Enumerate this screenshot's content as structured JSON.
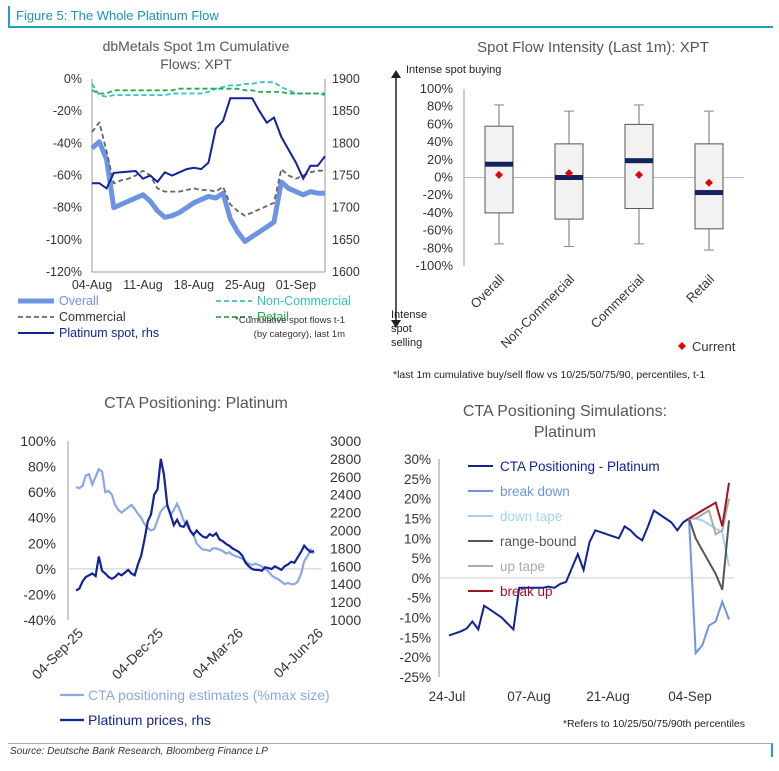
{
  "figure_title": "Figure 5: The Whole Platinum Flow",
  "source": "Source: Deutsche Bank Research, Bloomberg Finance LP",
  "colors": {
    "overall": "#6d94e0",
    "non_commercial": "#33c0c8",
    "commercial": "#666666",
    "retail": "#2aa84a",
    "spot": "#12239a",
    "cta_est": "#8aa8e6",
    "cta_price": "#12239a",
    "current": "#e00000",
    "median": "#12235e",
    "accent": "#1fa1c4"
  },
  "chart_data": [
    {
      "id": "flows",
      "type": "line",
      "title": "dbMetals Spot 1m Cumulative Flows: XPT",
      "ylim": [
        -120,
        0
      ],
      "y2lim": [
        1600,
        1900
      ],
      "x_ticks": [
        "04-Aug",
        "11-Aug",
        "18-Aug",
        "25-Aug",
        "01-Sep"
      ],
      "y_ticks": [
        "0%",
        "-20%",
        "-40%",
        "-60%",
        "-80%",
        "-100%",
        "-120%"
      ],
      "y2_ticks": [
        "1900",
        "1850",
        "1800",
        "1750",
        "1700",
        "1650",
        "1600"
      ],
      "note": "*Cumulative spot flows t-1 (by category), last 1m",
      "series": [
        {
          "name": "Overall",
          "values": [
            -43,
            -39,
            -50,
            -80,
            -78,
            -76,
            -74,
            -72,
            -76,
            -82,
            -86,
            -85,
            -83,
            -80,
            -77,
            -75,
            -73,
            -74,
            -71,
            -87,
            -95,
            -101,
            -98,
            -95,
            -92,
            -89,
            -64,
            -68,
            -70,
            -72,
            -70,
            -71,
            -71
          ]
        },
        {
          "name": "Non-Commercial",
          "values": [
            -3,
            -10,
            -11,
            -10,
            -10,
            -10,
            -10,
            -10,
            -10,
            -10,
            -10,
            -9,
            -9,
            -9,
            -9,
            -9,
            -8,
            -6,
            -5,
            -4,
            -4,
            -3,
            -3,
            -2,
            -2,
            -2,
            -5,
            -7,
            -9,
            -9,
            -9,
            -9,
            -10
          ]
        },
        {
          "name": "Commercial",
          "values": [
            -33,
            -27,
            -45,
            -65,
            -63,
            -62,
            -60,
            -57,
            -60,
            -68,
            -70,
            -70,
            -70,
            -69,
            -68,
            -69,
            -69,
            -70,
            -67,
            -78,
            -82,
            -85,
            -83,
            -81,
            -79,
            -77,
            -56,
            -60,
            -62,
            -60,
            -58,
            -57,
            -57
          ]
        },
        {
          "name": "Retail",
          "values": [
            -7,
            -9,
            -9,
            -7,
            -7,
            -7,
            -7,
            -7,
            -7,
            -7,
            -7,
            -7,
            -6,
            -6,
            -6,
            -6,
            -6,
            -6,
            -6,
            -6,
            -6,
            -7,
            -7,
            -8,
            -8,
            -8,
            -8,
            -9,
            -9,
            -9,
            -9,
            -9,
            -9
          ]
        }
      ],
      "series_rhs": {
        "name": "Platinum spot, rhs",
        "values": [
          1738,
          1738,
          1730,
          1754,
          1755,
          1756,
          1757,
          1745,
          1750,
          1740,
          1755,
          1750,
          1755,
          1760,
          1762,
          1760,
          1770,
          1823,
          1835,
          1870,
          1870,
          1870,
          1870,
          1850,
          1832,
          1840,
          1810,
          1790,
          1770,
          1745,
          1765,
          1765,
          1780
        ]
      }
    },
    {
      "id": "intensity",
      "type": "box",
      "title": "Spot Flow Intensity (Last 1m): XPT",
      "ylim": [
        -100,
        100
      ],
      "y_ticks": [
        "100%",
        "80%",
        "60%",
        "40%",
        "20%",
        "0%",
        "-20%",
        "-40%",
        "-60%",
        "-80%",
        "-100%"
      ],
      "categories": [
        "Overall",
        "Non-Commercial",
        "Commercial",
        "Retail"
      ],
      "p10": [
        -75,
        -78,
        -75,
        -82
      ],
      "p25": [
        -40,
        -47,
        -35,
        -58
      ],
      "p50": [
        15,
        0,
        19,
        -17
      ],
      "p75": [
        58,
        38,
        60,
        38
      ],
      "p90": [
        82,
        75,
        82,
        75
      ],
      "current": [
        3,
        5,
        3,
        -6
      ],
      "top_label": "Intense spot buying",
      "bottom_label": [
        "Intense",
        "spot",
        "selling"
      ],
      "legend_current": "Current",
      "footnote": "*last 1m cumulative buy/sell flow vs 10/25/50/75/90, percentiles, t-1"
    },
    {
      "id": "cta",
      "type": "line",
      "title": "CTA Positioning: Platinum",
      "ylim": [
        -40,
        100
      ],
      "y2lim": [
        1000,
        3000
      ],
      "y_ticks": [
        "100%",
        "80%",
        "60%",
        "40%",
        "20%",
        "0%",
        "-20%",
        "-40%"
      ],
      "y2_ticks": [
        "3000",
        "2800",
        "2600",
        "2400",
        "2200",
        "2000",
        "1800",
        "1600",
        "1400",
        "1200",
        "1000"
      ],
      "x_ticks": [
        "04-Sep-25",
        "04-Dec-25",
        "04-Mar-26",
        "04-Jun-26"
      ],
      "series": [
        {
          "name": "CTA positioning estimates (%max size)",
          "values": [
            64,
            63,
            65,
            73,
            74,
            66,
            72,
            78,
            76,
            60,
            61,
            58,
            50,
            46,
            44,
            46,
            48,
            50,
            47,
            43,
            40,
            35,
            32,
            30,
            31,
            38,
            45,
            48,
            50,
            42,
            46,
            51,
            45,
            38,
            34,
            30,
            27,
            20,
            17,
            15,
            15,
            14,
            16,
            16,
            15,
            14,
            12,
            13,
            11,
            10,
            9,
            8,
            6,
            4,
            3,
            4,
            3,
            2,
            0,
            -2,
            -5,
            -7,
            -8,
            -10,
            -12,
            -11,
            -12,
            -12,
            -10,
            -4,
            6,
            10,
            15,
            12
          ]
        },
        {
          "name": "Platinum prices, rhs",
          "values": [
            1330,
            1350,
            1430,
            1480,
            1500,
            1520,
            1490,
            1710,
            1550,
            1520,
            1480,
            1460,
            1480,
            1520,
            1500,
            1530,
            1560,
            1520,
            1500,
            1620,
            1720,
            1900,
            2100,
            2180,
            2400,
            2460,
            2800,
            2620,
            2280,
            2180,
            2060,
            2120,
            2050,
            2040,
            2100,
            2000,
            1950,
            2000,
            1960,
            1930,
            1920,
            1960,
            1940,
            1970,
            1900,
            1880,
            1850,
            1830,
            1800,
            1780,
            1760,
            1720,
            1640,
            1600,
            1570,
            1560,
            1560,
            1550,
            1590,
            1580,
            1570,
            1600,
            1580,
            1560,
            1600,
            1620,
            1650,
            1640,
            1700,
            1760,
            1830,
            1790,
            1760,
            1770
          ]
        }
      ]
    },
    {
      "id": "sims",
      "type": "line",
      "title": "CTA Positioning Simulations: Platinum",
      "ylim": [
        -25,
        30
      ],
      "y_ticks": [
        "30%",
        "25%",
        "20%",
        "15%",
        "10%",
        "5%",
        "0%",
        "-5%",
        "-10%",
        "-15%",
        "-20%",
        "-25%"
      ],
      "x_ticks": [
        "24-Jul",
        "07-Aug",
        "21-Aug",
        "04-Sep"
      ],
      "footnote": "*Refers to 10/25/50/75/90th percentiles",
      "series": [
        {
          "name": "CTA Positioning - Platinum",
          "values": [
            -14.5,
            -14,
            -13.5,
            -12.8,
            -11,
            -13,
            -7,
            -8,
            -9,
            -10,
            -11.5,
            -13,
            -2.5,
            -2.5,
            -2.5,
            -2.5,
            -2.5,
            -2.2,
            -2.5,
            -1.5,
            -1,
            2.5,
            6,
            2,
            9,
            12,
            11.5,
            11,
            10.5,
            10,
            13,
            12,
            10.5,
            9.5,
            13,
            17,
            16,
            15,
            14,
            12,
            14,
            15
          ]
        },
        {
          "name": "break down",
          "values": [
            15,
            -19,
            -17,
            -12,
            -11,
            -6,
            -10.5
          ]
        },
        {
          "name": "down tape",
          "values": [
            15,
            15,
            14.5,
            13.5,
            12.5,
            11.5,
            3
          ]
        },
        {
          "name": "range-bound",
          "values": [
            15,
            10,
            7,
            4,
            1,
            -3,
            14.5
          ]
        },
        {
          "name": "up tape",
          "values": [
            15,
            15,
            16,
            17,
            11,
            12,
            20
          ]
        },
        {
          "name": "break up",
          "values": [
            15,
            16,
            17,
            18,
            19,
            13,
            24
          ]
        }
      ]
    }
  ]
}
